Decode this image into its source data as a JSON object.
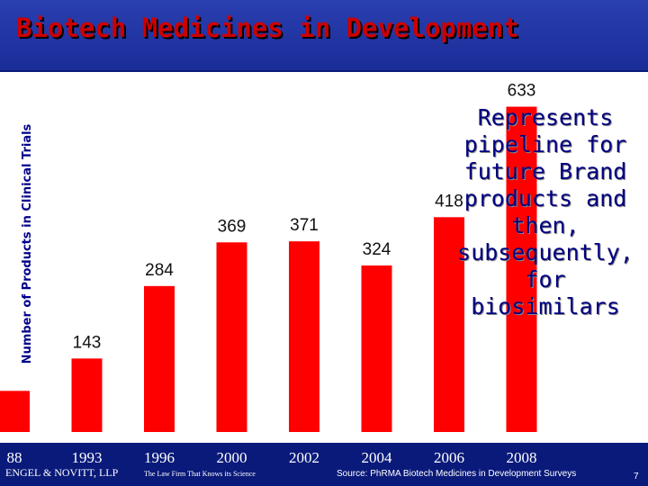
{
  "title": "Biotech Medicines in Development",
  "annotation": "Represents pipeline for future Brand products and then, subsequently, for biosimilars",
  "footer": {
    "firm": "ENGEL & NOVITT, LLP",
    "tagline": "The Law Firm That Knows its Science",
    "source": "Source: PhRMA Biotech Medicines in Development Surveys",
    "page": "7"
  },
  "colors": {
    "bar": "#ff0000",
    "background": "#0a1a7a",
    "plot": "#ffffff",
    "title": "#cc0000"
  },
  "chart_data": {
    "type": "bar",
    "ylabel": "Number of Products in Clinical Trials",
    "categories": [
      "88",
      "1993",
      "1996",
      "2000",
      "2002",
      "2004",
      "2006",
      "2008"
    ],
    "values": [
      80,
      143,
      284,
      369,
      371,
      324,
      418,
      633
    ],
    "data_labels": [
      "",
      "143",
      "284",
      "369",
      "371",
      "324",
      "418",
      "633"
    ],
    "ylim": [
      0,
      700
    ],
    "grid": false,
    "legend": "none"
  }
}
